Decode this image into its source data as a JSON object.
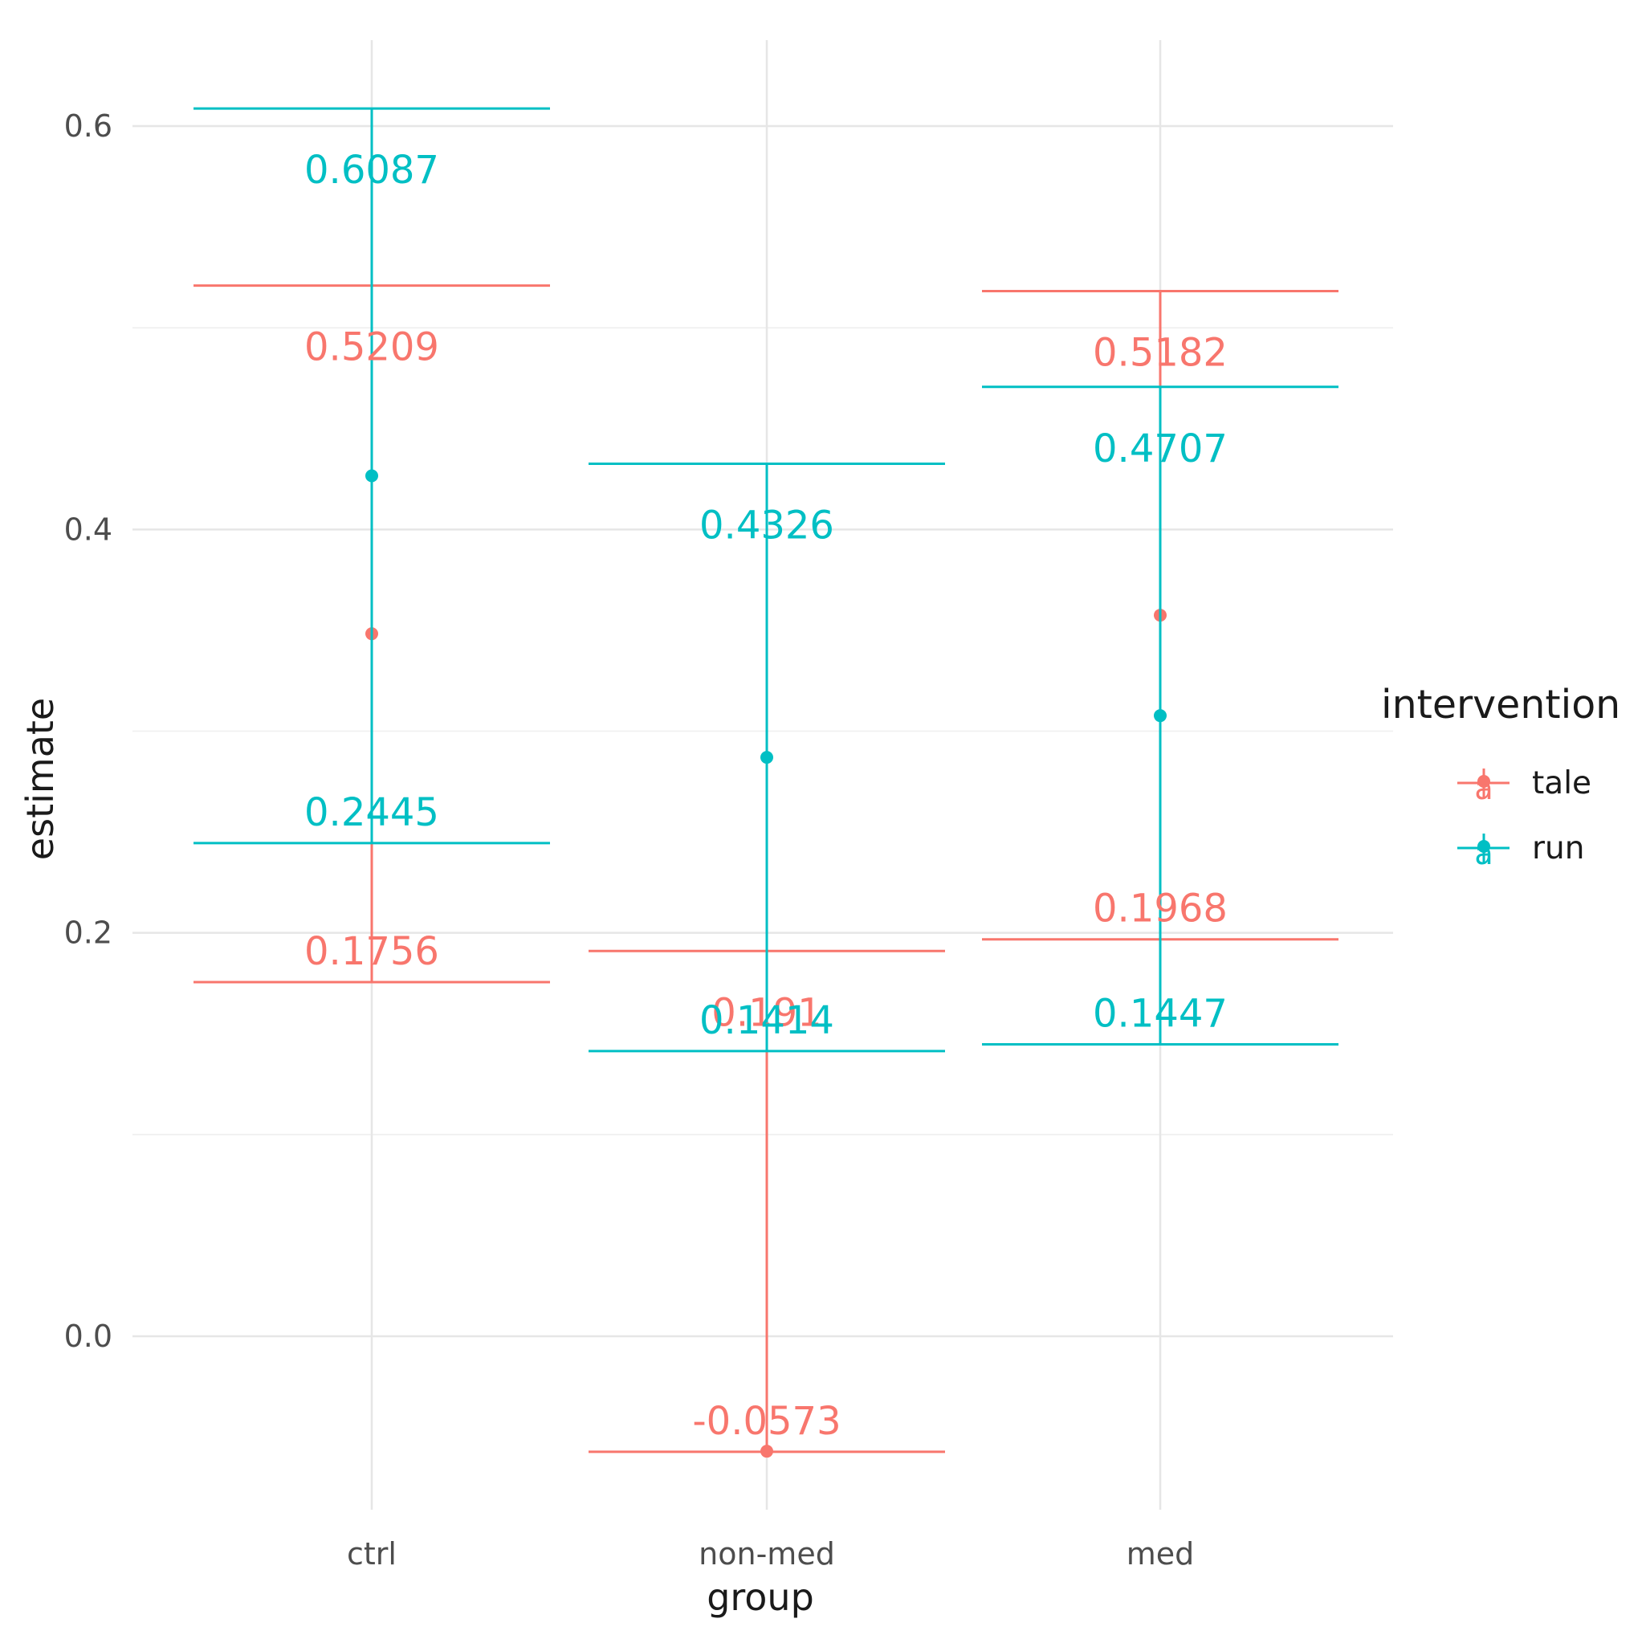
{
  "chart_data": {
    "type": "errorbar",
    "title": "",
    "xlabel": "group",
    "ylabel": "estimate",
    "categories": [
      "ctrl",
      "non-med",
      "med"
    ],
    "ylim": [
      -0.12,
      0.64
    ],
    "y_ticks": [
      0.0,
      0.2,
      0.4,
      0.6
    ],
    "y_tick_labels": [
      "0.0",
      "0.2",
      "0.4",
      "0.6"
    ],
    "grid": true,
    "legend": {
      "title": "intervention",
      "position": "right",
      "key_glyph": "a"
    },
    "series": [
      {
        "name": "tale",
        "color": "#F8766D",
        "estimates": [
          0.3483,
          -0.057,
          0.3575
        ],
        "lower": [
          "0.1756",
          "-0.0573",
          "0.1968"
        ],
        "upper": [
          "0.5209",
          "0.191",
          "0.5182"
        ]
      },
      {
        "name": "run",
        "color": "#00BFC4",
        "estimates": [
          0.4266,
          0.287,
          0.3077
        ],
        "lower": [
          "0.2445",
          "0.1414",
          "0.1447"
        ],
        "upper": [
          "0.6087",
          "0.4326",
          "0.4707"
        ]
      }
    ]
  }
}
